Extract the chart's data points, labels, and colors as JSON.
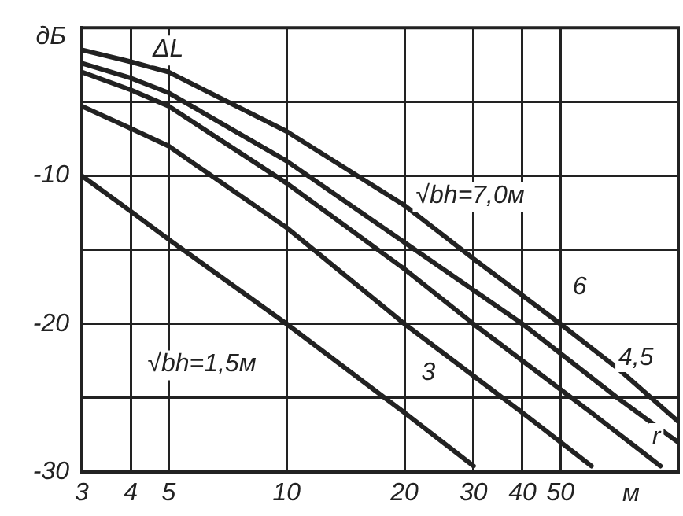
{
  "chart_data": {
    "type": "line",
    "xlabel": "м",
    "ylabel": "дБ",
    "log": "x",
    "xlim": [
      3,
      100
    ],
    "xticks": [
      3,
      4,
      5,
      10,
      {
        "value": 20,
        "label": "20"
      },
      30,
      40,
      50
    ],
    "ylim": [
      -30,
      0
    ],
    "yticks": [
      -30,
      {
        "value": -25,
        "label": null
      },
      -20,
      {
        "value": -15,
        "label": null
      },
      -10,
      {
        "value": -5,
        "label": null
      },
      {
        "value": 0,
        "label": null
      }
    ],
    "grid": true,
    "legend": false,
    "marker": "none",
    "line_style": "solid",
    "series": [
      {
        "color": "#222222",
        "x": [
          3,
          4,
          5,
          10,
          20,
          30,
          50,
          70,
          100
        ],
        "values": [
          -1.5,
          -2.3,
          -3,
          -7,
          -12,
          -15.6,
          -20,
          -23,
          -26.6
        ]
      },
      {
        "color": "#222222",
        "x": [
          3,
          4,
          5,
          10,
          20,
          40,
          70,
          100
        ],
        "values": [
          -2.4,
          -3.4,
          -4.4,
          -9,
          -14.5,
          -20,
          -25,
          -28
        ]
      },
      {
        "color": "#222222",
        "x": [
          3,
          4,
          5,
          10,
          20,
          30,
          60,
          90
        ],
        "values": [
          -3,
          -4.2,
          -5.3,
          -10.5,
          -16.3,
          -20,
          -26,
          -29.6
        ]
      },
      {
        "color": "#222222",
        "x": [
          3,
          4,
          5,
          10,
          20,
          40,
          60
        ],
        "values": [
          -5.3,
          -6.8,
          -8,
          -13.5,
          -20,
          -26,
          -29.6
        ]
      },
      {
        "color": "#222222",
        "x": [
          3,
          4,
          5,
          10,
          20,
          30
        ],
        "values": [
          -10,
          -12.4,
          -14.3,
          -20,
          -26,
          -29.6
        ]
      }
    ],
    "annotations": [
      "ΔL",
      "r",
      "√bh=7,0м",
      {
        "text": "6",
        "x": 56,
        "y": -17.5
      },
      {
        "text": "4,5",
        "x": 78,
        "y": -22.3
      },
      {
        "text": "3",
        "x": 23,
        "y": -23.3
      },
      "√bh=1,5м"
    ]
  }
}
